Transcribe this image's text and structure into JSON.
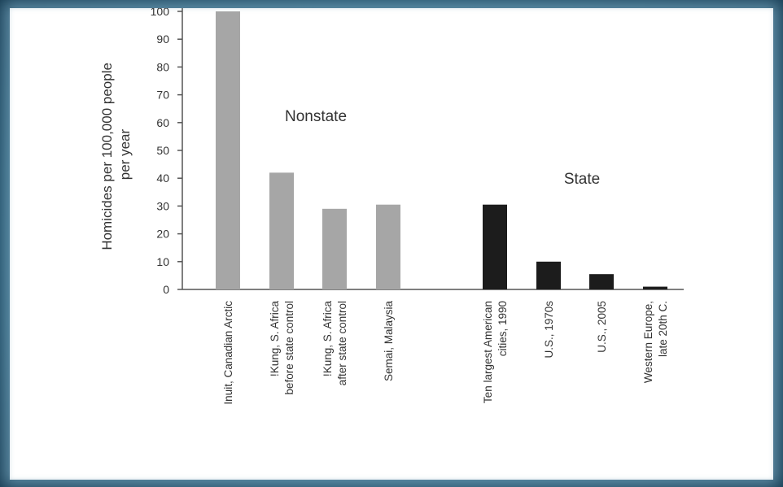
{
  "chart_data": {
    "type": "bar",
    "ylabel": "Homicides per 100,000 people per year",
    "ylabel_lines": [
      "Homicides per 100,000 people",
      "per year"
    ],
    "ylim": [
      0,
      100
    ],
    "yticks": [
      0,
      10,
      20,
      30,
      40,
      50,
      60,
      70,
      80,
      90,
      100
    ],
    "grid": false,
    "groups": [
      {
        "name": "Nonstate",
        "color": "#a6a6a6"
      },
      {
        "name": "State",
        "color": "#1c1c1c"
      }
    ],
    "bars": [
      {
        "label_lines": [
          "Inuit, Canadian Arctic"
        ],
        "value": 100,
        "group": "Nonstate"
      },
      {
        "label_lines": [
          "!Kung, S. Africa",
          "before state control"
        ],
        "value": 42,
        "group": "Nonstate"
      },
      {
        "label_lines": [
          "!Kung, S. Africa",
          "after state control"
        ],
        "value": 29,
        "group": "Nonstate"
      },
      {
        "label_lines": [
          "Semai, Malaysia"
        ],
        "value": 30.5,
        "group": "Nonstate"
      },
      {
        "label_lines": [
          "Ten largest American",
          "cities, 1990"
        ],
        "value": 30.5,
        "group": "State"
      },
      {
        "label_lines": [
          "U.S., 1970s"
        ],
        "value": 10,
        "group": "State"
      },
      {
        "label_lines": [
          "U.S., 2005"
        ],
        "value": 5.5,
        "group": "State"
      },
      {
        "label_lines": [
          "Western Europe,",
          "late 20th C."
        ],
        "value": 1,
        "group": "State"
      }
    ]
  }
}
